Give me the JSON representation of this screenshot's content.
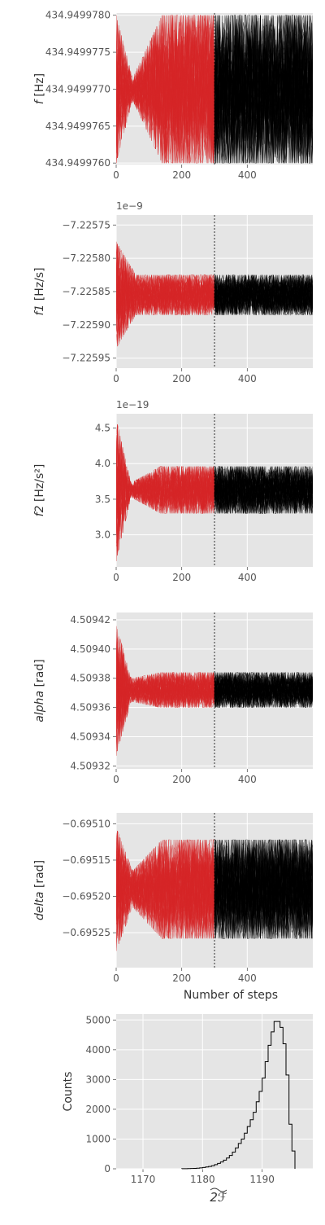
{
  "chart_data": [
    {
      "type": "line",
      "ylabel": "f [Hz]",
      "ylabel_italic": "f",
      "ylabel_unit": " [Hz]",
      "xlim": [
        0,
        600
      ],
      "ylim": [
        434.94997598,
        434.94997803
      ],
      "yticks": [
        "434.9499760",
        "434.9499765",
        "434.9499770",
        "434.9499775",
        "434.9499780"
      ],
      "ytick_values": [
        434.949976,
        434.9499765,
        434.949977,
        434.9499775,
        434.949978
      ],
      "xticks": [
        "0",
        "200",
        "400"
      ],
      "xtick_values": [
        0,
        200,
        400
      ],
      "offset_text": "",
      "burnin_steps": 300,
      "center": 434.949977,
      "half_width_prod": 1e-06,
      "half_width_init": 1e-06,
      "half_width_min": 1.5e-07,
      "neck_step": 50,
      "grid": true
    },
    {
      "type": "line",
      "ylabel_italic": "f1",
      "ylabel_unit": " [Hz/s]",
      "xlim": [
        0,
        600
      ],
      "ylim": [
        -7.225965,
        -7.225735
      ],
      "yticks": [
        "−7.22575",
        "−7.22580",
        "−7.22585",
        "−7.22590",
        "−7.22595"
      ],
      "ytick_values": [
        -7.22575,
        -7.2258,
        -7.22585,
        -7.2259,
        -7.22595
      ],
      "xticks": [
        "0",
        "200",
        "400"
      ],
      "xtick_values": [
        0,
        200,
        400
      ],
      "offset_text": "1e−9",
      "burnin_steps": 300,
      "center": -7.225855,
      "half_width_prod": 3e-05,
      "half_width_init": 8e-05,
      "half_width_min": 3e-05,
      "neck_step": 60,
      "grid": true
    },
    {
      "type": "line",
      "ylabel_italic": "f2",
      "ylabel_unit": " [Hz/s²]",
      "xlim": [
        0,
        600
      ],
      "ylim": [
        2.55,
        4.7
      ],
      "yticks": [
        "3.0",
        "3.5",
        "4.0",
        "4.5"
      ],
      "ytick_values": [
        3.0,
        3.5,
        4.0,
        4.5
      ],
      "xticks": [
        "0",
        "200",
        "400"
      ],
      "xtick_values": [
        0,
        200,
        400
      ],
      "offset_text": "1e−19",
      "burnin_steps": 300,
      "center": 3.63,
      "half_width_prod": 0.33,
      "half_width_init": 1.0,
      "half_width_min": 0.1,
      "neck_step": 45,
      "grid": true
    },
    {
      "type": "line",
      "ylabel_italic": "alpha",
      "ylabel_unit": " [rad]",
      "xlim": [
        0,
        600
      ],
      "ylim": [
        4.509318,
        4.509425
      ],
      "yticks": [
        "4.50932",
        "4.50934",
        "4.50936",
        "4.50938",
        "4.50940",
        "4.50942"
      ],
      "ytick_values": [
        4.50932,
        4.50934,
        4.50936,
        4.50938,
        4.5094,
        4.50942
      ],
      "xticks": [
        "0",
        "200",
        "400"
      ],
      "xtick_values": [
        0,
        200,
        400
      ],
      "offset_text": "",
      "burnin_steps": 300,
      "center": 4.509372,
      "half_width_prod": 1.2e-05,
      "half_width_init": 4.5e-05,
      "half_width_min": 8e-06,
      "neck_step": 45,
      "grid": true
    },
    {
      "type": "line",
      "ylabel_italic": "delta",
      "ylabel_unit": " [rad]",
      "xlabel": "Number of steps",
      "xlim": [
        0,
        600
      ],
      "ylim": [
        -0.695298,
        -0.695085
      ],
      "yticks": [
        "−0.69510",
        "−0.69515",
        "−0.69520",
        "−0.69525"
      ],
      "ytick_values": [
        -0.6951,
        -0.69515,
        -0.6952,
        -0.69525
      ],
      "xticks": [
        "0",
        "200",
        "400"
      ],
      "xtick_values": [
        0,
        200,
        400
      ],
      "offset_text": "",
      "burnin_steps": 300,
      "center": -0.69519,
      "half_width_prod": 6.8e-05,
      "half_width_init": 8.5e-05,
      "half_width_min": 2.5e-05,
      "neck_step": 50,
      "grid": true
    },
    {
      "type": "histogram-step",
      "ylabel": "Counts",
      "xlabel": "2F (twiddle)",
      "xlabel_parts": [
        "2",
        "ℱ"
      ],
      "xlim": [
        1165.5,
        1198.5
      ],
      "ylim": [
        0,
        5200
      ],
      "xticks": [
        "1170",
        "1180",
        "1190"
      ],
      "xtick_values": [
        1170,
        1180,
        1190
      ],
      "yticks": [
        "0",
        "1000",
        "2000",
        "3000",
        "4000",
        "5000"
      ],
      "ytick_values": [
        0,
        1000,
        2000,
        3000,
        4000,
        5000
      ],
      "bins_start": 1176.5,
      "bin_width": 0.5,
      "counts": [
        2,
        4,
        6,
        10,
        14,
        20,
        30,
        45,
        60,
        80,
        105,
        140,
        180,
        230,
        290,
        360,
        450,
        560,
        700,
        850,
        1000,
        1200,
        1420,
        1650,
        1900,
        2250,
        2600,
        3050,
        3600,
        4150,
        4600,
        4950,
        4950,
        4750,
        4200,
        3150,
        1500,
        600
      ],
      "grid": true
    }
  ],
  "colors": {
    "burnin": "#d62728",
    "production": "#000000",
    "axes_bg": "#e5e5e5",
    "grid": "#ffffff",
    "text": "#555555",
    "label": "#333333"
  }
}
